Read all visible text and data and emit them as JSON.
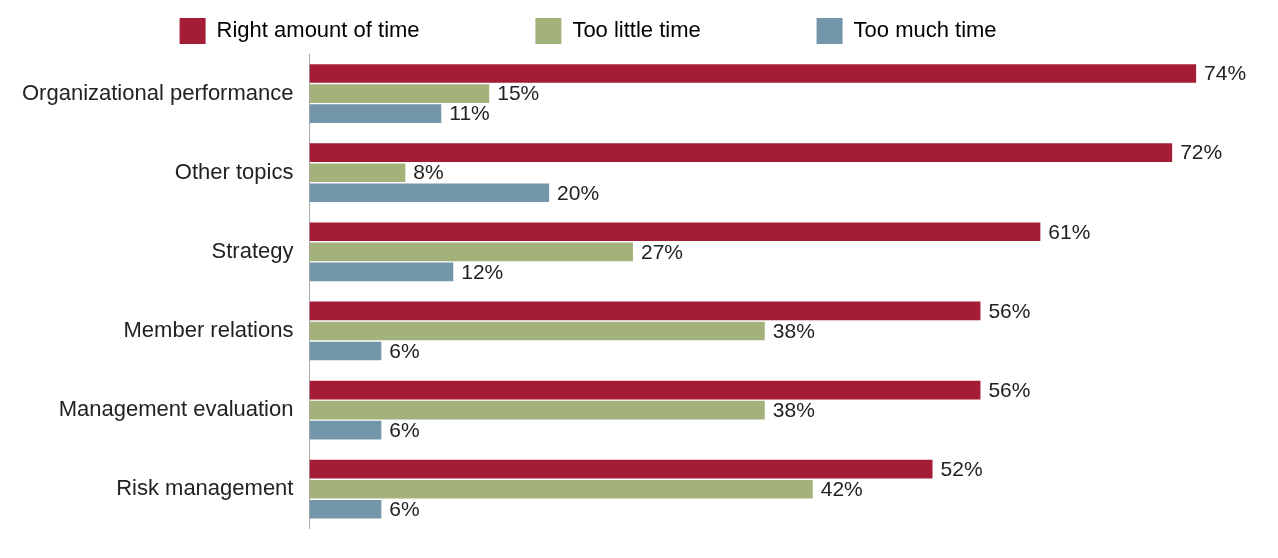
{
  "chart_data": {
    "type": "bar",
    "orientation": "horizontal",
    "categories": [
      "Organizational performance",
      "Other topics",
      "Strategy",
      "Member relations",
      "Management evaluation",
      "Risk management"
    ],
    "series": [
      {
        "name": "Right amount of time",
        "color": "#a51c36",
        "values": [
          74,
          72,
          61,
          56,
          56,
          52
        ],
        "value_labels": [
          "74%",
          "72%",
          "61%",
          "56%",
          "56%",
          "52%"
        ]
      },
      {
        "name": "Too little time",
        "color": "#a3b27b",
        "values": [
          15,
          8,
          27,
          38,
          38,
          42
        ],
        "value_labels": [
          "15%",
          "8%",
          "27%",
          "38%",
          "38%",
          "42%"
        ]
      },
      {
        "name": "Too much time",
        "color": "#7496aa",
        "values": [
          11,
          20,
          12,
          6,
          6,
          6
        ],
        "value_labels": [
          "11%",
          "20%",
          "12%",
          "6%",
          "6%",
          "6%"
        ]
      }
    ],
    "tick_labels": "y",
    "grid": false,
    "legend": "top"
  }
}
